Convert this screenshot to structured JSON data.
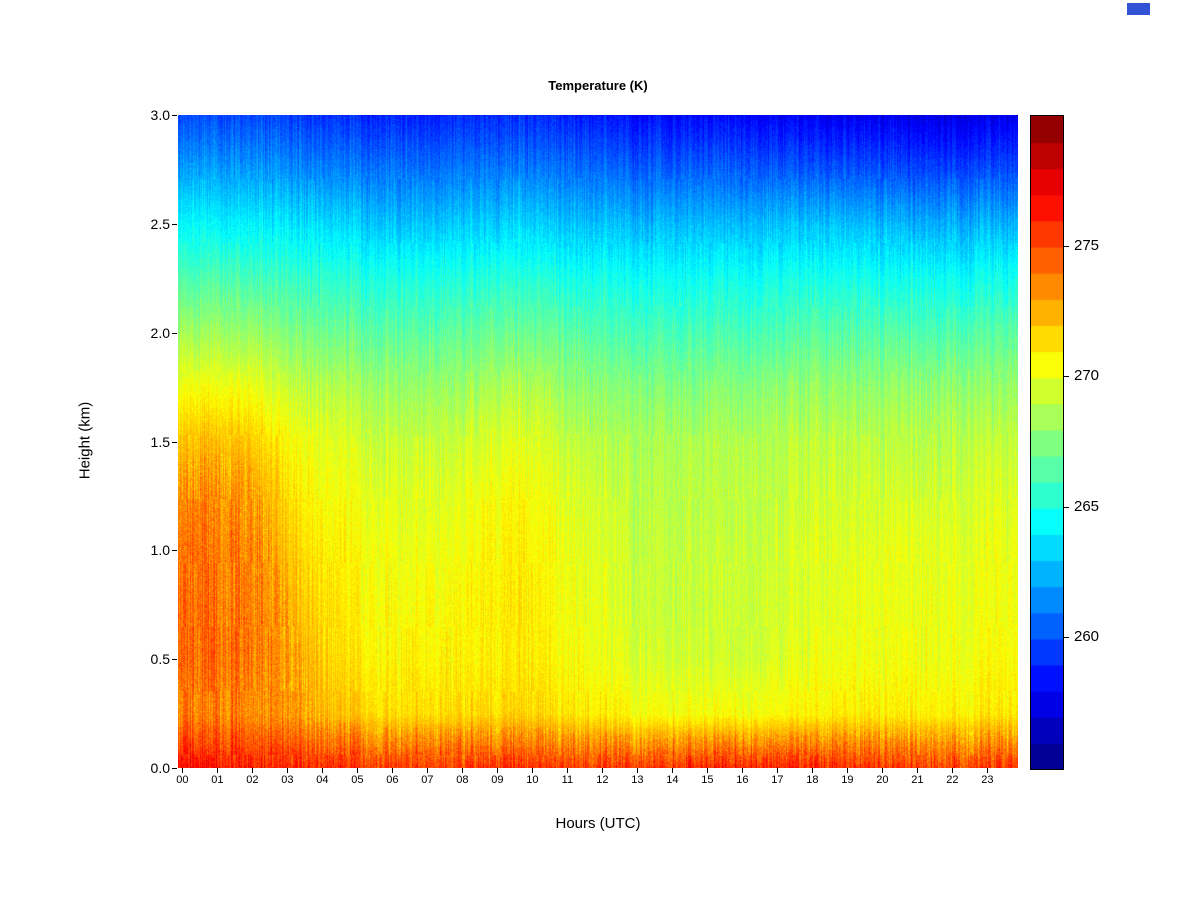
{
  "corner_mark": {
    "color": "#3353d6"
  },
  "chart_data": {
    "type": "heatmap",
    "title": "Temperature (K)",
    "xlabel": "Hours (UTC)",
    "ylabel": "Height (km)",
    "x_tick_labels": [
      "00",
      "01",
      "02",
      "03",
      "04",
      "05",
      "06",
      "07",
      "08",
      "09",
      "10",
      "11",
      "12",
      "13",
      "14",
      "15",
      "16",
      "17",
      "18",
      "19",
      "20",
      "21",
      "22",
      "23"
    ],
    "y_ticks": [
      0.0,
      0.5,
      1.0,
      1.5,
      2.0,
      2.5,
      3.0
    ],
    "x_range_hours": [
      0,
      24
    ],
    "y_range_km": [
      0,
      3
    ],
    "hours": [
      0,
      1,
      2,
      3,
      4,
      5,
      6,
      7,
      8,
      9,
      10,
      11,
      12,
      13,
      14,
      15,
      16,
      17,
      18,
      19,
      20,
      21,
      22,
      23
    ],
    "heights_km": [
      0.0,
      0.25,
      0.5,
      0.75,
      1.0,
      1.25,
      1.5,
      1.75,
      2.0,
      2.25,
      2.5,
      2.75,
      3.0
    ],
    "zlim": [
      255,
      280
    ],
    "colorbar_ticks": [
      260,
      265,
      270,
      275
    ],
    "colorbar_segment_K": 1,
    "colormap": "jet",
    "colormap_stops": [
      [
        0.0,
        0,
        0,
        128
      ],
      [
        0.125,
        0,
        0,
        255
      ],
      [
        0.375,
        0,
        255,
        255
      ],
      [
        0.625,
        255,
        255,
        0
      ],
      [
        0.875,
        255,
        0,
        0
      ],
      [
        1.0,
        128,
        0,
        0
      ]
    ],
    "grid": false,
    "legend_position": "right-colorbar",
    "noise": {
      "column": 0.55,
      "segment": 0.45,
      "pixel": 0.55,
      "warm_boost": 1.7,
      "warm_threshold": 272.5,
      "seed": 42
    },
    "values": [
      [
        276.5,
        276.5,
        276.3,
        276.0,
        275.8,
        275.6,
        275.5,
        275.5,
        275.5,
        275.6,
        275.6,
        275.5,
        275.5,
        275.6,
        275.8,
        276.0,
        276.2,
        276.2,
        276.0,
        275.8,
        275.6,
        275.5,
        275.5,
        275.6
      ],
      [
        273.5,
        273.8,
        273.5,
        273.0,
        272.5,
        271.8,
        271.5,
        271.4,
        271.4,
        271.6,
        271.6,
        271.3,
        271.0,
        270.6,
        270.5,
        270.5,
        270.5,
        270.6,
        270.8,
        271.0,
        271.0,
        271.0,
        271.0,
        271.2
      ],
      [
        274.0,
        274.2,
        274.0,
        273.2,
        272.0,
        271.2,
        270.9,
        270.8,
        270.8,
        271.0,
        271.0,
        270.7,
        270.3,
        269.8,
        269.6,
        269.5,
        269.5,
        269.7,
        270.0,
        270.2,
        270.3,
        270.3,
        270.3,
        270.5
      ],
      [
        274.0,
        274.2,
        274.0,
        272.8,
        271.4,
        270.9,
        270.6,
        270.5,
        270.6,
        271.0,
        271.0,
        270.5,
        270.0,
        269.5,
        269.3,
        269.3,
        269.3,
        269.5,
        269.8,
        270.0,
        270.2,
        270.2,
        270.2,
        270.3
      ],
      [
        273.8,
        274.0,
        273.8,
        272.2,
        271.0,
        270.6,
        270.3,
        270.2,
        270.3,
        270.8,
        270.8,
        270.3,
        269.8,
        269.4,
        269.3,
        269.3,
        269.3,
        269.4,
        269.7,
        269.9,
        270.0,
        270.0,
        270.0,
        270.2
      ],
      [
        273.2,
        273.5,
        273.2,
        271.6,
        270.5,
        270.2,
        269.9,
        269.8,
        269.9,
        270.5,
        270.5,
        269.9,
        269.5,
        269.1,
        269.0,
        269.0,
        269.0,
        269.1,
        269.3,
        269.5,
        269.6,
        269.6,
        269.6,
        269.8
      ],
      [
        272.0,
        272.3,
        272.0,
        270.8,
        270.0,
        269.6,
        269.3,
        269.2,
        269.3,
        269.8,
        269.8,
        269.3,
        268.9,
        268.7,
        268.7,
        268.7,
        268.7,
        268.8,
        268.9,
        269.0,
        269.0,
        269.0,
        269.0,
        269.2
      ],
      [
        270.2,
        270.4,
        270.2,
        269.4,
        268.8,
        268.5,
        268.2,
        268.1,
        268.2,
        268.6,
        268.6,
        268.2,
        267.9,
        267.7,
        267.7,
        267.7,
        267.7,
        267.8,
        267.9,
        268.0,
        268.0,
        268.0,
        268.0,
        268.1
      ],
      [
        268.2,
        268.4,
        268.2,
        267.6,
        267.2,
        266.9,
        266.7,
        266.6,
        266.7,
        267.0,
        267.0,
        266.7,
        266.4,
        266.2,
        266.2,
        266.2,
        266.2,
        266.3,
        266.4,
        266.5,
        266.5,
        266.4,
        266.4,
        266.5
      ],
      [
        266.2,
        266.4,
        266.2,
        265.8,
        265.5,
        265.3,
        265.1,
        265.0,
        265.1,
        265.3,
        265.3,
        265.1,
        264.9,
        264.7,
        264.7,
        264.7,
        264.7,
        264.8,
        264.8,
        264.9,
        264.8,
        264.7,
        264.7,
        264.8
      ],
      [
        264.2,
        264.3,
        264.2,
        263.8,
        263.5,
        263.3,
        263.1,
        263.0,
        263.1,
        263.3,
        263.2,
        263.0,
        262.9,
        262.8,
        262.8,
        262.8,
        262.8,
        262.8,
        262.8,
        262.8,
        262.7,
        262.5,
        262.5,
        262.6
      ],
      [
        262.0,
        262.1,
        262.0,
        261.6,
        261.3,
        261.1,
        261.0,
        260.9,
        261.0,
        261.2,
        261.1,
        260.9,
        260.8,
        260.6,
        260.5,
        260.5,
        260.4,
        260.3,
        260.2,
        260.1,
        260.0,
        259.9,
        259.9,
        260.0
      ],
      [
        259.9,
        260.0,
        259.9,
        259.6,
        259.3,
        259.1,
        259.0,
        258.9,
        259.0,
        259.2,
        259.1,
        258.9,
        258.7,
        258.5,
        258.4,
        258.3,
        258.2,
        258.0,
        257.9,
        257.8,
        257.7,
        257.6,
        257.6,
        257.7
      ]
    ]
  }
}
